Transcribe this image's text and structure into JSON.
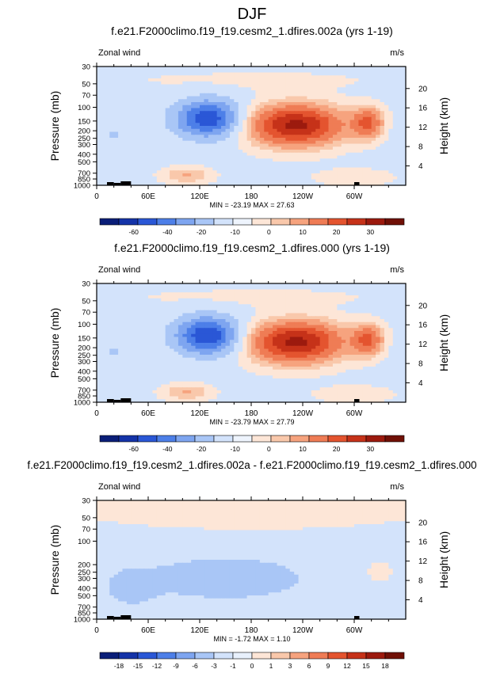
{
  "figure_title": "DJF",
  "chart_data": [
    {
      "type": "heatmap",
      "title": "f.e21.F2000climo.f19_f19.cesm2_1.dfires.002a (yrs 1-19)",
      "left_label": "Zonal wind",
      "right_label": "m/s",
      "ylabel": "Pressure (mb)",
      "y2label": "Height (km)",
      "xticks": [
        "0",
        "60E",
        "120E",
        "180",
        "120W",
        "60W"
      ],
      "yticks": [
        "30",
        "50",
        "70",
        "100",
        "150",
        "200",
        "250",
        "300",
        "400",
        "500",
        "700",
        "850",
        "1000"
      ],
      "y2ticks": [
        "20",
        "16",
        "12",
        "8",
        "4"
      ],
      "stats": "MIN = -23.19   MAX = 27.63",
      "min": -23.19,
      "max": 27.63,
      "colorbar_labels": [
        "-60",
        "-40",
        "-20",
        "-10",
        "0",
        "10",
        "20",
        "30"
      ],
      "features": [
        {
          "lon": 130,
          "p": 140,
          "lon_r": 38,
          "lev_r": 0.55,
          "amp": -23.2
        },
        {
          "lon": 232,
          "p": 170,
          "lon_r": 55,
          "lev_r": 0.6,
          "amp": 27.6
        },
        {
          "lon": 316,
          "p": 160,
          "lon_r": 18,
          "lev_r": 0.45,
          "amp": 16.0
        },
        {
          "lon": 105,
          "p": 750,
          "lon_r": 28,
          "lev_r": 0.25,
          "amp": 7.5
        },
        {
          "lon": 300,
          "p": 800,
          "lon_r": 45,
          "lev_r": 0.25,
          "amp": 4.0
        },
        {
          "lon": 20,
          "p": 220,
          "lon_r": 30,
          "lev_r": 0.5,
          "amp": -4.0
        },
        {
          "lon": 180,
          "p": 45,
          "lon_r": 170,
          "lev_r": 0.3,
          "amp": 2.0
        }
      ]
    },
    {
      "type": "heatmap",
      "title": "f.e21.F2000climo.f19_f19.cesm2_1.dfires.000 (yrs 1-19)",
      "left_label": "Zonal wind",
      "right_label": "m/s",
      "ylabel": "Pressure (mb)",
      "y2label": "Height (km)",
      "xticks": [
        "0",
        "60E",
        "120E",
        "180",
        "120W",
        "60W"
      ],
      "yticks": [
        "30",
        "50",
        "70",
        "100",
        "150",
        "200",
        "250",
        "300",
        "400",
        "500",
        "700",
        "850",
        "1000"
      ],
      "y2ticks": [
        "20",
        "16",
        "12",
        "8",
        "4"
      ],
      "stats": "MIN = -23.79   MAX = 27.79",
      "min": -23.79,
      "max": 27.79,
      "colorbar_labels": [
        "-60",
        "-40",
        "-20",
        "-10",
        "0",
        "10",
        "20",
        "30"
      ],
      "features": [
        {
          "lon": 130,
          "p": 140,
          "lon_r": 38,
          "lev_r": 0.55,
          "amp": -23.8
        },
        {
          "lon": 232,
          "p": 170,
          "lon_r": 55,
          "lev_r": 0.6,
          "amp": 27.8
        },
        {
          "lon": 316,
          "p": 160,
          "lon_r": 18,
          "lev_r": 0.45,
          "amp": 16.0
        },
        {
          "lon": 105,
          "p": 750,
          "lon_r": 28,
          "lev_r": 0.25,
          "amp": 7.5
        },
        {
          "lon": 300,
          "p": 800,
          "lon_r": 45,
          "lev_r": 0.25,
          "amp": 4.0
        },
        {
          "lon": 20,
          "p": 220,
          "lon_r": 30,
          "lev_r": 0.5,
          "amp": -4.0
        },
        {
          "lon": 180,
          "p": 45,
          "lon_r": 170,
          "lev_r": 0.3,
          "amp": 2.0
        }
      ]
    },
    {
      "type": "heatmap",
      "title": "f.e21.F2000climo.f19_f19.cesm2_1.dfires.002a - f.e21.F2000climo.f19_f19.cesm2_1.dfires.000",
      "left_label": "Zonal wind",
      "right_label": "m/s",
      "ylabel": "Pressure (mb)",
      "y2label": "Height (km)",
      "xticks": [
        "0",
        "60E",
        "120E",
        "180",
        "120W",
        "60W"
      ],
      "yticks": [
        "30",
        "50",
        "70",
        "100",
        "200",
        "250",
        "300",
        "400",
        "500",
        "700",
        "850",
        "1000"
      ],
      "y2ticks": [
        "20",
        "16",
        "12",
        "8",
        "4"
      ],
      "stats": "MIN = -1.72   MAX =  1.10",
      "min": -1.72,
      "max": 1.1,
      "colorbar_labels": [
        "-18",
        "-15",
        "-12",
        "-9",
        "-6",
        "-3",
        "-1",
        "0",
        "1",
        "3",
        "6",
        "9",
        "12",
        "15",
        "18"
      ],
      "features": [
        {
          "lon": 150,
          "p": 300,
          "lon_r": 90,
          "lev_r": 0.6,
          "amp": -1.72
        },
        {
          "lon": 40,
          "p": 400,
          "lon_r": 30,
          "lev_r": 0.55,
          "amp": -1.2
        },
        {
          "lon": 330,
          "p": 250,
          "lon_r": 15,
          "lev_r": 0.3,
          "amp": 0.8
        },
        {
          "lon": 270,
          "p": 400,
          "lon_r": 20,
          "lev_r": 0.5,
          "amp": 0.5
        },
        {
          "lon": 180,
          "p": 40,
          "lon_r": 180,
          "lev_r": 0.5,
          "amp": 1.1
        }
      ]
    }
  ],
  "colors": {
    "blue": [
      "#0a1e78",
      "#1433a8",
      "#2a57d6",
      "#4d7fe8",
      "#7ea5f0",
      "#a9c6f6",
      "#d3e3fb"
    ],
    "red": [
      "#fde6d7",
      "#f9c8ab",
      "#f6a37e",
      "#ef7c55",
      "#e4542f",
      "#c63219",
      "#9c1a0e",
      "#701006"
    ]
  }
}
